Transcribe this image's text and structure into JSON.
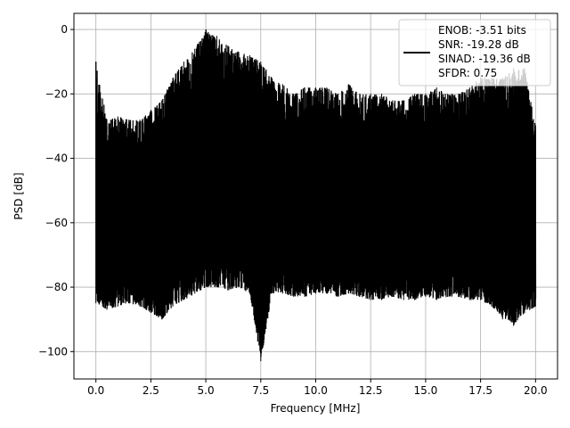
{
  "chart_data": {
    "type": "line",
    "title": "",
    "xlabel": "Frequency [MHz]",
    "ylabel": "PSD [dB]",
    "xlim": [
      -1.0,
      21.0
    ],
    "ylim": [
      -108.5,
      5
    ],
    "xticks": [
      "0.0",
      "2.5",
      "5.0",
      "7.5",
      "10.0",
      "12.5",
      "15.0",
      "17.5",
      "20.0"
    ],
    "xtick_values": [
      0,
      2.5,
      5,
      7.5,
      10,
      12.5,
      15,
      17.5,
      20
    ],
    "yticks": [
      "0",
      "−20",
      "−40",
      "−60",
      "−80",
      "−100"
    ],
    "ytick_values": [
      0,
      -20,
      -40,
      -60,
      -80,
      -100
    ],
    "grid": true,
    "legend_position": "top-right",
    "series": [
      {
        "color": "#000000",
        "envelope_freq_mhz": [
          0,
          0.5,
          1,
          1.5,
          2,
          2.5,
          3,
          3.5,
          4,
          4.5,
          5,
          5.5,
          6,
          6.5,
          7,
          7.5,
          8,
          8.5,
          9,
          9.5,
          10,
          10.5,
          11,
          11.5,
          12,
          12.5,
          13,
          13.5,
          14,
          14.5,
          15,
          15.5,
          16,
          16.5,
          17,
          17.5,
          18,
          18.5,
          19,
          19.5,
          20
        ],
        "peak_db": [
          -10,
          -28,
          -27,
          -28,
          -28,
          -25,
          -22,
          -15,
          -10,
          -6,
          0,
          -2,
          -5,
          -7,
          -8,
          -10,
          -15,
          -17,
          -20,
          -18,
          -18,
          -18,
          -20,
          -17,
          -20,
          -20,
          -20,
          -22,
          -22,
          -20,
          -20,
          -18,
          -20,
          -20,
          -18,
          -15,
          -15,
          -15,
          -12,
          -12,
          -30
        ],
        "trough_db": [
          -85,
          -87,
          -86,
          -85,
          -86,
          -88,
          -90,
          -86,
          -84,
          -82,
          -80,
          -80,
          -81,
          -80,
          -82,
          -103,
          -82,
          -82,
          -83,
          -83,
          -82,
          -82,
          -83,
          -82,
          -83,
          -84,
          -84,
          -83,
          -84,
          -84,
          -83,
          -84,
          -83,
          -83,
          -84,
          -84,
          -86,
          -90,
          -92,
          -88,
          -86
        ]
      }
    ],
    "legend": [
      "ENOB: -3.51 bits",
      "SNR: -19.28 dB",
      "SINAD: -19.36 dB",
      "SFDR: 0.75"
    ]
  }
}
